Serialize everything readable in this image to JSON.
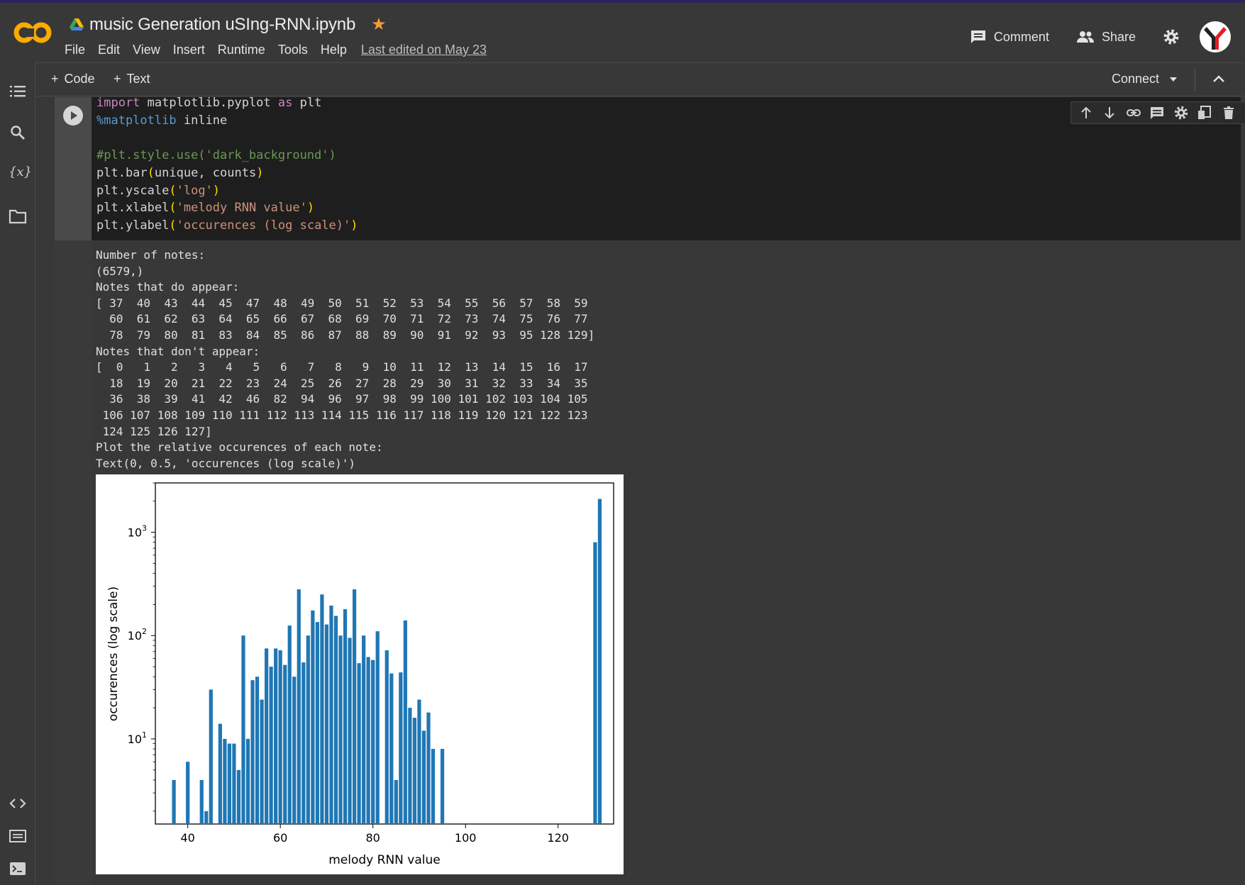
{
  "header": {
    "notebook_title": "music Generation uSIng-RNN.ipynb",
    "menu": [
      "File",
      "Edit",
      "View",
      "Insert",
      "Runtime",
      "Tools",
      "Help"
    ],
    "last_edited": "Last edited on May 23",
    "comment_label": "Comment",
    "share_label": "Share",
    "colors": {
      "logo_orange": "#f9ab00",
      "star": "#f29938"
    }
  },
  "toolbar": {
    "add_code": "Code",
    "add_text": "Text",
    "connect": "Connect"
  },
  "sidebar": {
    "icons": [
      "table-of-contents-icon",
      "search-icon",
      "variables-icon",
      "folder-icon",
      "code-snippets-icon",
      "command-palette-icon",
      "terminal-icon"
    ],
    "variables_label": "{x}"
  },
  "cell": {
    "code_lines": [
      "import matplotlib.pyplot as plt",
      "%matplotlib inline",
      "",
      "#plt.style.use('dark_background')",
      "plt.bar(unique, counts)",
      "plt.yscale('log')",
      "plt.xlabel('melody RNN value')",
      "plt.ylabel('occurences (log scale)')"
    ],
    "output_lines": [
      "Number of notes:",
      "(6579,)",
      "Notes that do appear:",
      "[ 37  40  43  44  45  47  48  49  50  51  52  53  54  55  56  57  58  59",
      "  60  61  62  63  64  65  66  67  68  69  70  71  72  73  74  75  76  77",
      "  78  79  80  81  83  84  85  86  87  88  89  90  91  92  93  95 128 129]",
      "Notes that don't appear:",
      "[  0   1   2   3   4   5   6   7   8   9  10  11  12  13  14  15  16  17",
      "  18  19  20  21  22  23  24  25  26  27  28  29  30  31  32  33  34  35",
      "  36  38  39  41  42  46  82  94  96  97  98  99 100 101 102 103 104 105",
      " 106 107 108 109 110 111 112 113 114 115 116 117 118 119 120 121 122 123",
      " 124 125 126 127]",
      "Plot the relative occurences of each note:",
      "Text(0, 0.5, 'occurences (log scale)')"
    ]
  },
  "chart_data": {
    "type": "bar",
    "xlabel": "melody RNN value",
    "ylabel": "occurences (log scale)",
    "yscale": "log",
    "xlim": [
      33,
      132
    ],
    "ylim": [
      1.5,
      3000
    ],
    "xticks": [
      40,
      60,
      80,
      100,
      120
    ],
    "yticks": [
      {
        "value": 10,
        "label": "10",
        "exp": "1"
      },
      {
        "value": 100,
        "label": "10",
        "exp": "2"
      },
      {
        "value": 1000,
        "label": "10",
        "exp": "3"
      }
    ],
    "bar_color": "#1f77b4",
    "x": [
      37,
      40,
      43,
      44,
      45,
      47,
      48,
      49,
      50,
      51,
      52,
      53,
      54,
      55,
      56,
      57,
      58,
      59,
      60,
      61,
      62,
      63,
      64,
      65,
      66,
      67,
      68,
      69,
      70,
      71,
      72,
      73,
      74,
      75,
      76,
      77,
      78,
      79,
      80,
      81,
      83,
      84,
      85,
      86,
      87,
      88,
      89,
      90,
      91,
      92,
      93,
      95,
      128,
      129
    ],
    "values": [
      4,
      6,
      4,
      2,
      30,
      14,
      10,
      9,
      9,
      5,
      100,
      10,
      37,
      40,
      24,
      75,
      50,
      75,
      72,
      52,
      125,
      40,
      280,
      55,
      100,
      175,
      135,
      250,
      128,
      195,
      155,
      100,
      180,
      95,
      280,
      54,
      100,
      62,
      58,
      110,
      72,
      43,
      4,
      44,
      140,
      20,
      16,
      24,
      12,
      18,
      8,
      8,
      800,
      2100
    ]
  }
}
